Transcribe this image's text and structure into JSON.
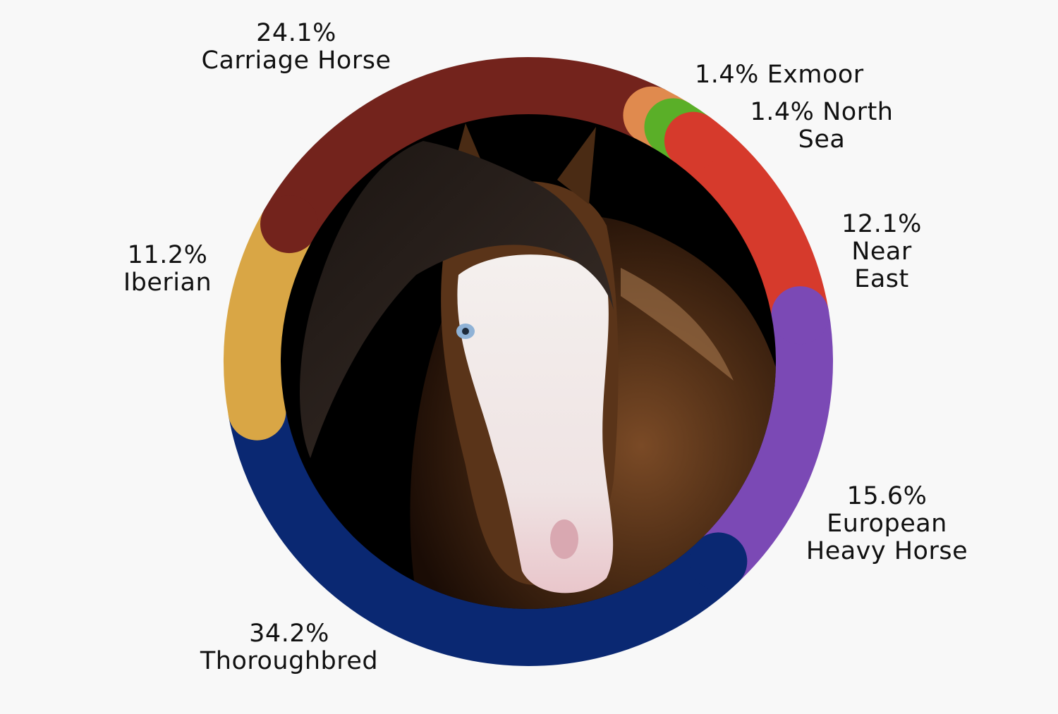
{
  "chart_data": {
    "type": "pie",
    "style": "donut",
    "title": "",
    "slices": [
      {
        "label": "Carriage Horse",
        "value": 24.1,
        "value_text": "24.1%",
        "color": "#73231c"
      },
      {
        "label": "Exmoor",
        "value": 1.4,
        "value_text": "1.4%",
        "color": "#e08a4e"
      },
      {
        "label": "North Sea",
        "value": 1.4,
        "value_text": "1.4%",
        "color": "#5aaf28"
      },
      {
        "label": "Near East",
        "value": 12.1,
        "value_text": "12.1%",
        "color": "#d63a2c"
      },
      {
        "label": "European Heavy Horse",
        "value": 15.6,
        "value_text": "15.6%",
        "color": "#7b49b5"
      },
      {
        "label": "Thoroughbred",
        "value": 34.2,
        "value_text": "34.2%",
        "color": "#0a2872"
      },
      {
        "label": "Iberian",
        "value": 11.2,
        "value_text": "11.2%",
        "color": "#d9a645"
      }
    ],
    "center_image": "horse-portrait-bay-with-blaze"
  }
}
